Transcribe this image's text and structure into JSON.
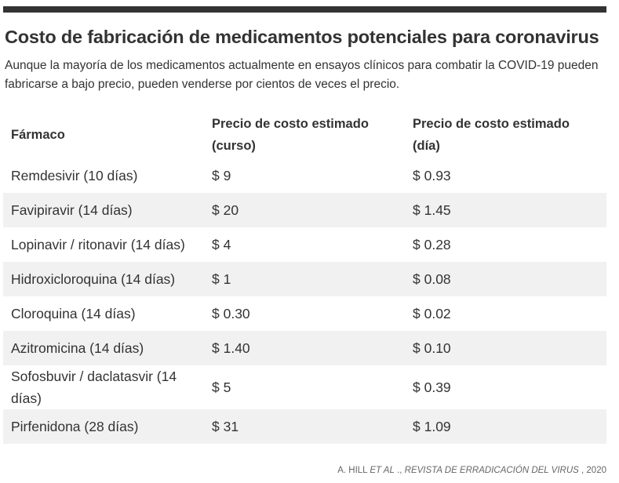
{
  "title": "Costo de fabricación de medicamentos potenciales para coronavirus",
  "subtitle": "Aunque la mayoría de los medicamentos actualmente en ensayos clínicos para combatir la COVID-19 pueden fabricarse a bajo precio, pueden venderse por cientos de veces el precio.",
  "chart_data": {
    "type": "table",
    "columns": [
      "Fármaco",
      "Precio de costo estimado (curso)",
      "Precio de costo estimado (día)"
    ],
    "rows": [
      {
        "drug": "Remdesivir (10 días)",
        "course": "$ 9",
        "day": "$ 0.93"
      },
      {
        "drug": "Favipiravir (14 días)",
        "course": "$ 20",
        "day": "$ 1.45"
      },
      {
        "drug": "Lopinavir / ritonavir (14 días)",
        "course": "$ 4",
        "day": "$ 0.28"
      },
      {
        "drug": "Hidroxicloroquina (14 días)",
        "course": "$ 1",
        "day": "$ 0.08"
      },
      {
        "drug": "Cloroquina (14 días)",
        "course": "$ 0.30",
        "day": "$ 0.02"
      },
      {
        "drug": "Azitromicina (14 días)",
        "course": "$ 1.40",
        "day": "$ 0.10"
      },
      {
        "drug": "Sofosbuvir / daclatasvir (14 días)",
        "course": "$ 5",
        "day": "$ 0.39"
      },
      {
        "drug": "Pirfenidona (28 días)",
        "course": "$ 31",
        "day": "$ 1.09"
      }
    ]
  },
  "source": {
    "prefix": "A. HILL ",
    "italic": "ET AL",
    "middle": " ., ",
    "journal": "REVISTA DE ERRADICACIÓN DEL VIRUS",
    "suffix": " , 2020"
  },
  "colors": {
    "bar": "#333333",
    "stripe": "#f1f1f1",
    "text": "#333333"
  }
}
